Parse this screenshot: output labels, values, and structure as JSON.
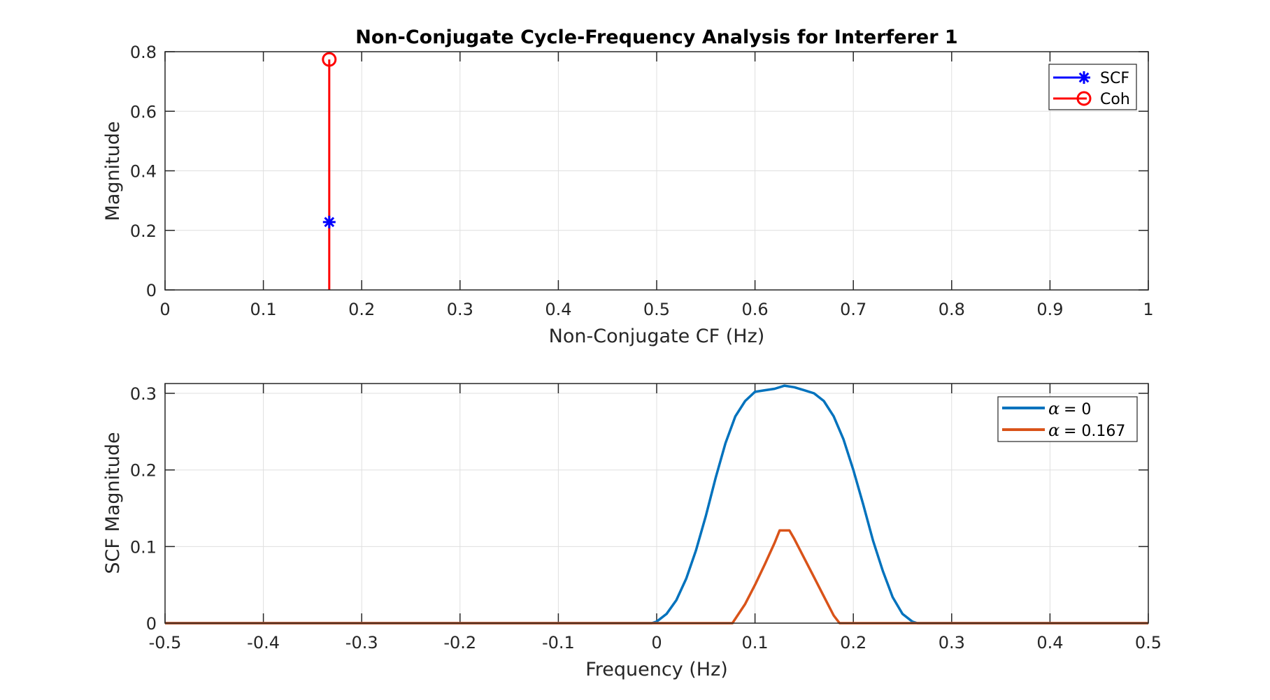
{
  "chart_data": [
    {
      "type": "stem",
      "title": "Non-Conjugate Cycle-Frequency Analysis for Interferer 1",
      "xlabel": "Non-Conjugate CF (Hz)",
      "ylabel": "Magnitude",
      "xlim": [
        0,
        1
      ],
      "ylim": [
        0,
        0.8
      ],
      "grid": true,
      "xticks": [
        "0",
        "0.1",
        "0.2",
        "0.3",
        "0.4",
        "0.5",
        "0.6",
        "0.7",
        "0.8",
        "0.9",
        "1"
      ],
      "xtick_values": [
        0,
        0.1,
        0.2,
        0.3,
        0.4,
        0.5,
        0.6,
        0.7,
        0.8,
        0.9,
        1
      ],
      "yticks": [
        "0",
        "0.2",
        "0.4",
        "0.6",
        "0.8"
      ],
      "ytick_values": [
        0,
        0.2,
        0.4,
        0.6,
        0.8
      ],
      "legend_position": "top-right",
      "series": [
        {
          "name": "SCF",
          "color": "#0000ff",
          "marker": "asterisk",
          "x": [
            0.167
          ],
          "y": [
            0.228
          ]
        },
        {
          "name": "Coh",
          "color": "#ff0000",
          "marker": "circle",
          "x": [
            0.167
          ],
          "y": [
            0.774
          ]
        }
      ]
    },
    {
      "type": "line",
      "xlabel": "Frequency (Hz)",
      "ylabel": "SCF Magnitude",
      "xlim": [
        -0.5,
        0.5
      ],
      "ylim": [
        0,
        0.3128
      ],
      "grid": true,
      "xticks": [
        "-0.5",
        "-0.4",
        "-0.3",
        "-0.2",
        "-0.1",
        "0",
        "0.1",
        "0.2",
        "0.3",
        "0.4",
        "0.5"
      ],
      "xtick_values": [
        -0.5,
        -0.4,
        -0.3,
        -0.2,
        -0.1,
        0,
        0.1,
        0.2,
        0.3,
        0.4,
        0.5
      ],
      "yticks": [
        "0",
        "0.1",
        "0.2",
        "0.3"
      ],
      "ytick_values": [
        0,
        0.1,
        0.2,
        0.3
      ],
      "legend_position": "top-right",
      "series": [
        {
          "name": "= 0",
          "legend_symbol": "α",
          "color": "#0072bd",
          "x": [
            -0.5,
            -0.005,
            0.0,
            0.01,
            0.02,
            0.03,
            0.04,
            0.05,
            0.06,
            0.07,
            0.08,
            0.09,
            0.1,
            0.11,
            0.12,
            0.13,
            0.14,
            0.15,
            0.16,
            0.17,
            0.18,
            0.19,
            0.2,
            0.21,
            0.22,
            0.23,
            0.24,
            0.25,
            0.26,
            0.265,
            0.5
          ],
          "y": [
            0,
            0,
            0.002,
            0.012,
            0.03,
            0.058,
            0.095,
            0.14,
            0.19,
            0.235,
            0.27,
            0.29,
            0.302,
            0.304,
            0.306,
            0.31,
            0.308,
            0.304,
            0.3,
            0.29,
            0.27,
            0.24,
            0.2,
            0.155,
            0.108,
            0.068,
            0.034,
            0.012,
            0.002,
            0,
            0
          ]
        },
        {
          "name": "= 0.167",
          "legend_symbol": "α",
          "color": "#d95319",
          "x": [
            -0.5,
            0.077,
            0.09,
            0.1,
            0.11,
            0.12,
            0.125,
            0.135,
            0.14,
            0.15,
            0.16,
            0.17,
            0.18,
            0.186,
            0.5
          ],
          "y": [
            0,
            0,
            0.025,
            0.05,
            0.077,
            0.105,
            0.121,
            0.121,
            0.11,
            0.085,
            0.06,
            0.035,
            0.01,
            0,
            0
          ]
        }
      ]
    }
  ]
}
